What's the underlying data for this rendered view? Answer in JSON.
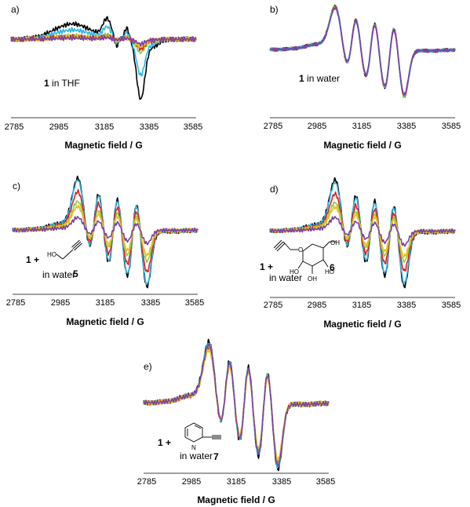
{
  "colors": {
    "black": "#000000",
    "blue": "#2ab6e6",
    "green": "#8ccf3e",
    "red": "#e02020",
    "yellow": "#e6c21c",
    "purple": "#7a3fa8"
  },
  "chart_data": [
    {
      "id": "a",
      "type": "line",
      "panel_label": "a)",
      "xlabel": "Magnetic field / G",
      "ylabel": "",
      "xlim": [
        2785,
        3585
      ],
      "xticks": [
        "2785",
        "2985",
        "3185",
        "3385",
        "3585"
      ],
      "annotation": {
        "bold": "1",
        "text": " in THF"
      },
      "series": [
        {
          "color": "black",
          "shape": "thf",
          "amp": 1.0
        },
        {
          "color": "blue",
          "shape": "thf",
          "amp": 0.6
        },
        {
          "color": "green",
          "shape": "thf",
          "amp": 0.22
        },
        {
          "color": "red",
          "shape": "thf",
          "amp": 0.16
        },
        {
          "color": "yellow",
          "shape": "thf",
          "amp": 0.12
        },
        {
          "color": "purple",
          "shape": "thf",
          "amp": 0.08
        }
      ]
    },
    {
      "id": "b",
      "type": "line",
      "panel_label": "b)",
      "xlabel": "Magnetic field / G",
      "ylabel": "",
      "xlim": [
        2785,
        3585
      ],
      "xticks": [
        "2785",
        "2985",
        "3185",
        "3385",
        "3585"
      ],
      "annotation": {
        "bold": "1",
        "text": " in water"
      },
      "series": [
        {
          "color": "black",
          "shape": "water",
          "amp": 1.0
        },
        {
          "color": "green",
          "shape": "water",
          "amp": 1.03
        },
        {
          "color": "red",
          "shape": "water",
          "amp": 0.99
        },
        {
          "color": "blue",
          "shape": "water",
          "amp": 0.98
        },
        {
          "color": "purple",
          "shape": "water",
          "amp": 0.97
        }
      ]
    },
    {
      "id": "c",
      "type": "line",
      "panel_label": "c)",
      "xlabel": "Magnetic field / G",
      "ylabel": "",
      "xlim": [
        2785,
        3585
      ],
      "xticks": [
        "2785",
        "2985",
        "3185",
        "3385",
        "3585"
      ],
      "annotation": {
        "bold": "1 +",
        "text": "in water",
        "compound": "5"
      },
      "series": [
        {
          "color": "black",
          "shape": "water",
          "amp": 1.0
        },
        {
          "color": "blue",
          "shape": "water",
          "amp": 0.96
        },
        {
          "color": "red",
          "shape": "water",
          "amp": 0.74
        },
        {
          "color": "green",
          "shape": "water",
          "amp": 0.55
        },
        {
          "color": "yellow",
          "shape": "water",
          "amp": 0.45
        },
        {
          "color": "purple",
          "shape": "water",
          "amp": 0.24
        }
      ]
    },
    {
      "id": "d",
      "type": "line",
      "panel_label": "d)",
      "xlabel": "Magnetic field / G",
      "ylabel": "",
      "xlim": [
        2785,
        3585
      ],
      "xticks": [
        "2785",
        "2985",
        "3185",
        "3385",
        "3585"
      ],
      "annotation": {
        "bold": "1 +",
        "text": "in water",
        "compound": "6"
      },
      "series": [
        {
          "color": "black",
          "shape": "water",
          "amp": 1.0
        },
        {
          "color": "blue",
          "shape": "water",
          "amp": 0.94
        },
        {
          "color": "red",
          "shape": "water",
          "amp": 0.72
        },
        {
          "color": "green",
          "shape": "water",
          "amp": 0.55
        },
        {
          "color": "yellow",
          "shape": "water",
          "amp": 0.46
        },
        {
          "color": "purple",
          "shape": "water",
          "amp": 0.26
        }
      ]
    },
    {
      "id": "e",
      "type": "line",
      "panel_label": "e)",
      "xlabel": "Magnetic field / G",
      "ylabel": "",
      "xlim": [
        2785,
        3585
      ],
      "xticks": [
        "2785",
        "2985",
        "3185",
        "3385",
        "3585"
      ],
      "annotation": {
        "bold": "1 +",
        "text": "in water",
        "compound": "7"
      },
      "series": [
        {
          "color": "black",
          "shape": "water",
          "amp": 1.0
        },
        {
          "color": "blue",
          "shape": "water",
          "amp": 0.98
        },
        {
          "color": "red",
          "shape": "water",
          "amp": 0.9
        },
        {
          "color": "green",
          "shape": "water",
          "amp": 0.92
        },
        {
          "color": "yellow",
          "shape": "water",
          "amp": 0.86
        },
        {
          "color": "purple",
          "shape": "water",
          "amp": 0.95
        }
      ]
    }
  ],
  "chem": {
    "c_label": "HO",
    "d_oh1": "OH",
    "d_ho1": "HO",
    "d_oh2": "OH",
    "d_ho2": "HO",
    "d_o": "O",
    "e_n": "N"
  }
}
